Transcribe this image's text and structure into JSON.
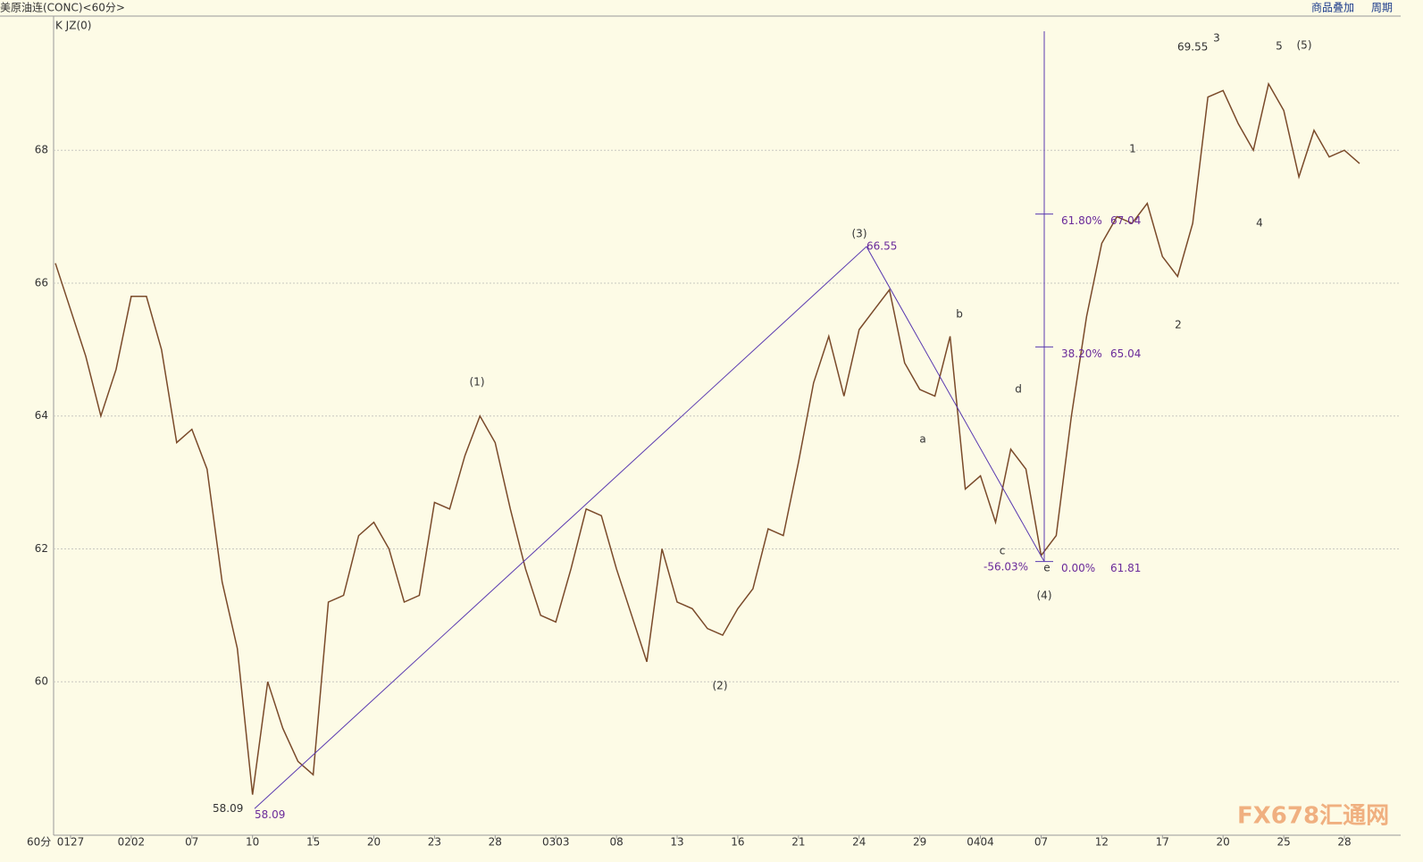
{
  "header": {
    "title": "美原油连(CONC)<60分>",
    "indicator": "K  JZ(0)",
    "menu": [
      "商品叠加",
      "周期"
    ],
    "period": "60分",
    "watermark": "FX678汇通网"
  },
  "chart_data": {
    "type": "line",
    "categories": [
      null,
      "0127",
      null,
      null,
      null,
      "0202",
      null,
      null,
      null,
      "07",
      null,
      null,
      null,
      "10",
      null,
      null,
      null,
      "15",
      null,
      null,
      null,
      "20",
      null,
      null,
      null,
      "23",
      null,
      null,
      null,
      "28",
      null,
      null,
      null,
      "0303",
      null,
      null,
      null,
      "08",
      null,
      null,
      null,
      "13",
      null,
      null,
      null,
      "16",
      null,
      null,
      null,
      "21",
      null,
      null,
      null,
      "24",
      null,
      null,
      null,
      "29",
      null,
      null,
      null,
      "0404",
      null,
      null,
      null,
      "07",
      null,
      null,
      null,
      "12",
      null,
      null,
      null,
      "17",
      null,
      null,
      null,
      "20",
      null,
      null,
      null,
      "25",
      null,
      null,
      null,
      "28",
      null
    ],
    "series": [
      {
        "name": "CONC",
        "color": "#7a4a2a",
        "values": [
          66.3,
          65.6,
          64.9,
          64.0,
          64.7,
          65.8,
          65.8,
          65.0,
          63.6,
          63.8,
          63.2,
          61.5,
          60.5,
          58.3,
          60.0,
          59.3,
          58.8,
          58.6,
          61.2,
          61.3,
          62.2,
          62.4,
          62.0,
          61.2,
          61.3,
          62.7,
          62.6,
          63.4,
          64.0,
          63.6,
          62.6,
          61.7,
          61.0,
          60.9,
          61.7,
          62.6,
          62.5,
          61.7,
          61.0,
          60.3,
          62.0,
          61.2,
          61.1,
          60.8,
          60.7,
          61.1,
          61.4,
          62.3,
          62.2,
          63.3,
          64.5,
          65.2,
          64.3,
          65.3,
          65.6,
          65.9,
          64.8,
          64.4,
          64.3,
          65.2,
          62.9,
          63.1,
          62.4,
          63.5,
          63.2,
          61.9,
          62.2,
          64.0,
          65.5,
          66.6,
          67.0,
          66.9,
          67.2,
          66.4,
          66.1,
          66.9,
          68.8,
          68.9,
          68.4,
          68.0,
          69.0,
          68.6,
          67.6,
          68.3,
          67.9,
          68.0,
          67.8
        ]
      }
    ],
    "ylim": [
      57.69,
      70.02
    ],
    "yticks": [
      60,
      62,
      64,
      66,
      68
    ],
    "grid": true,
    "wave_labels": [
      "(1)",
      "(2)",
      "(3)",
      "(4)",
      "(5)",
      "a",
      "b",
      "c",
      "d",
      "e",
      "1",
      "2",
      "3",
      "4",
      "5"
    ],
    "swing_points": [
      58.09,
      66.55,
      61.81
    ],
    "price_labels": [
      58.09,
      58.09,
      66.55,
      69.55
    ],
    "fib_levels": [
      {
        "percent": "0.00%",
        "price": 61.81
      },
      {
        "percent": "38.20%",
        "price": 65.04
      },
      {
        "percent": "61.80%",
        "price": 67.04
      }
    ],
    "extension_label": "-56.03%"
  }
}
